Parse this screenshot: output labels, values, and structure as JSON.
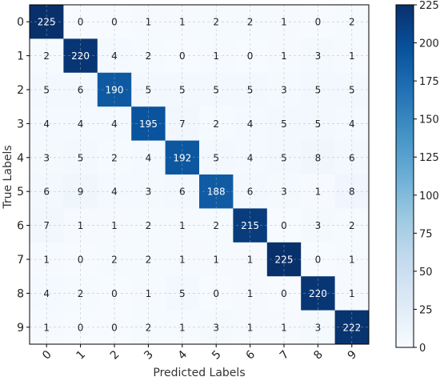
{
  "chart_data": {
    "type": "heatmap",
    "title": "",
    "xlabel": "Predicted Labels",
    "ylabel": "True Labels",
    "x_categories": [
      "0",
      "1",
      "2",
      "3",
      "4",
      "5",
      "6",
      "7",
      "8",
      "9"
    ],
    "y_categories": [
      "0",
      "1",
      "2",
      "3",
      "4",
      "5",
      "6",
      "7",
      "8",
      "9"
    ],
    "values": [
      [
        225,
        0,
        0,
        1,
        1,
        2,
        2,
        1,
        0,
        2
      ],
      [
        2,
        220,
        4,
        2,
        0,
        1,
        0,
        1,
        3,
        1
      ],
      [
        5,
        6,
        190,
        5,
        5,
        5,
        5,
        3,
        5,
        5
      ],
      [
        4,
        4,
        4,
        195,
        7,
        2,
        4,
        5,
        5,
        4
      ],
      [
        3,
        5,
        2,
        4,
        192,
        5,
        4,
        5,
        8,
        6
      ],
      [
        6,
        9,
        4,
        3,
        6,
        188,
        6,
        3,
        1,
        8
      ],
      [
        7,
        1,
        1,
        2,
        1,
        2,
        215,
        0,
        3,
        2
      ],
      [
        1,
        0,
        2,
        2,
        1,
        1,
        1,
        225,
        0,
        1
      ],
      [
        4,
        2,
        0,
        1,
        5,
        0,
        1,
        0,
        220,
        1
      ],
      [
        1,
        0,
        0,
        2,
        1,
        3,
        1,
        1,
        3,
        222
      ]
    ],
    "colorbar": {
      "min": 0,
      "max": 225,
      "ticks": [
        0,
        25,
        50,
        75,
        100,
        125,
        150,
        175,
        200,
        225
      ],
      "colormap": "Blues",
      "low_color": "#f7fbff",
      "high_color": "#08306b"
    },
    "grid": true,
    "x_tick_rotation": "rotated ~45 degrees"
  }
}
